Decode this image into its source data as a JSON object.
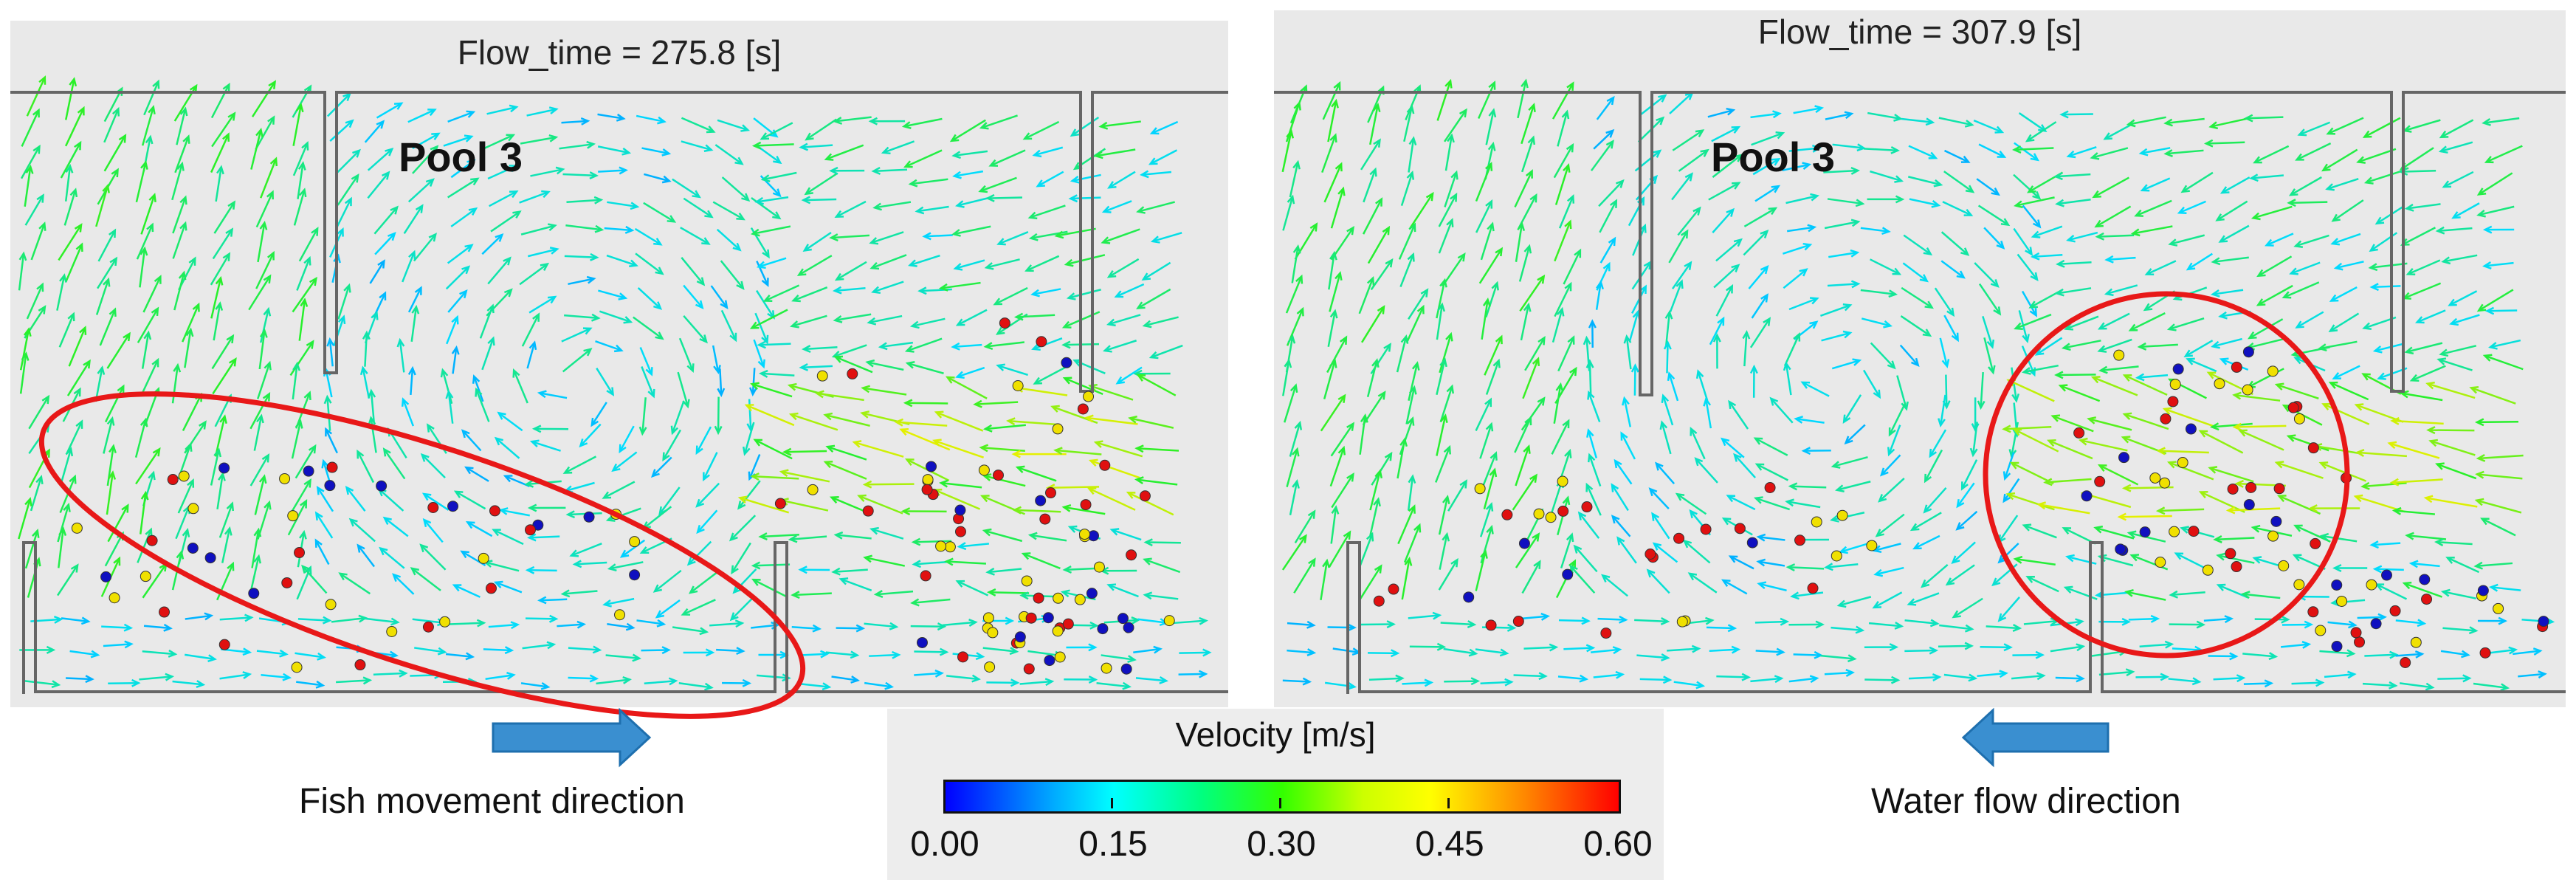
{
  "panels": [
    {
      "title": "Flow_time = 275.8 [s]",
      "pool_label": "Pool 3"
    },
    {
      "title": "Flow_time = 307.9 [s]",
      "pool_label": "Pool 3"
    }
  ],
  "captions": {
    "left": "Fish movement direction",
    "right": "Water flow direction"
  },
  "legend": {
    "title": "Velocity [m/s]",
    "ticks": [
      "0.00",
      "0.15",
      "0.30",
      "0.45",
      "0.60"
    ]
  },
  "colors": {
    "highlight": "#e81818",
    "arrow": "#3a8fd0",
    "fish_red": "#e01010",
    "fish_blue": "#1010c0",
    "fish_yellow": "#f0e000",
    "wall": "#666666"
  }
}
